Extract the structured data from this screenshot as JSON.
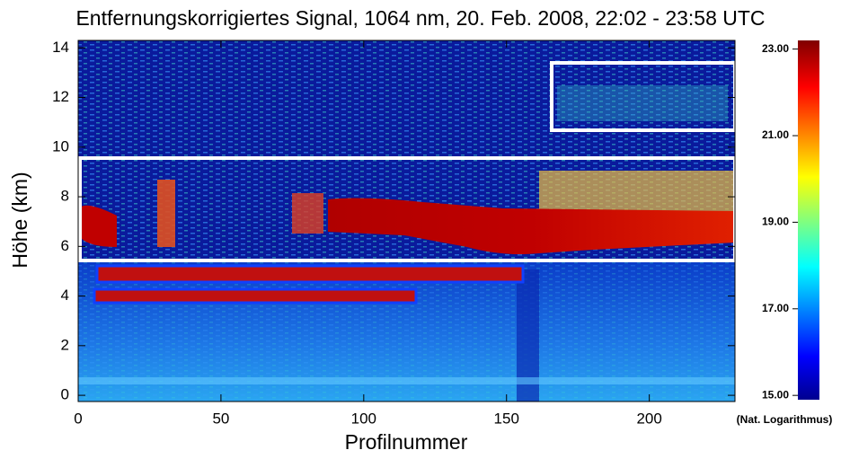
{
  "chart_data": {
    "type": "heatmap",
    "title": "Entfernungskorrigiertes Signal, 1064 nm, 20. Feb. 2008, 22:02 - 23:58 UTC",
    "x_label": "Profilnummer",
    "y_label": "Höhe (km)",
    "xlim": [
      0,
      230
    ],
    "xticks": [
      0,
      50,
      100,
      150,
      200
    ],
    "ylim": [
      -0.25,
      14.3
    ],
    "yticks": [
      0,
      2,
      4,
      6,
      8,
      10,
      12,
      14
    ],
    "colorbar": {
      "label": "(Nat. Logarithmus)",
      "lim": [
        14.9,
        23.2
      ],
      "ticks": [
        {
          "value": 15,
          "label": "15.00"
        },
        {
          "value": 17,
          "label": "17.00"
        },
        {
          "value": 19,
          "label": "19.00"
        },
        {
          "value": 21,
          "label": "21.00"
        },
        {
          "value": 23,
          "label": "23.00"
        }
      ]
    }
  }
}
